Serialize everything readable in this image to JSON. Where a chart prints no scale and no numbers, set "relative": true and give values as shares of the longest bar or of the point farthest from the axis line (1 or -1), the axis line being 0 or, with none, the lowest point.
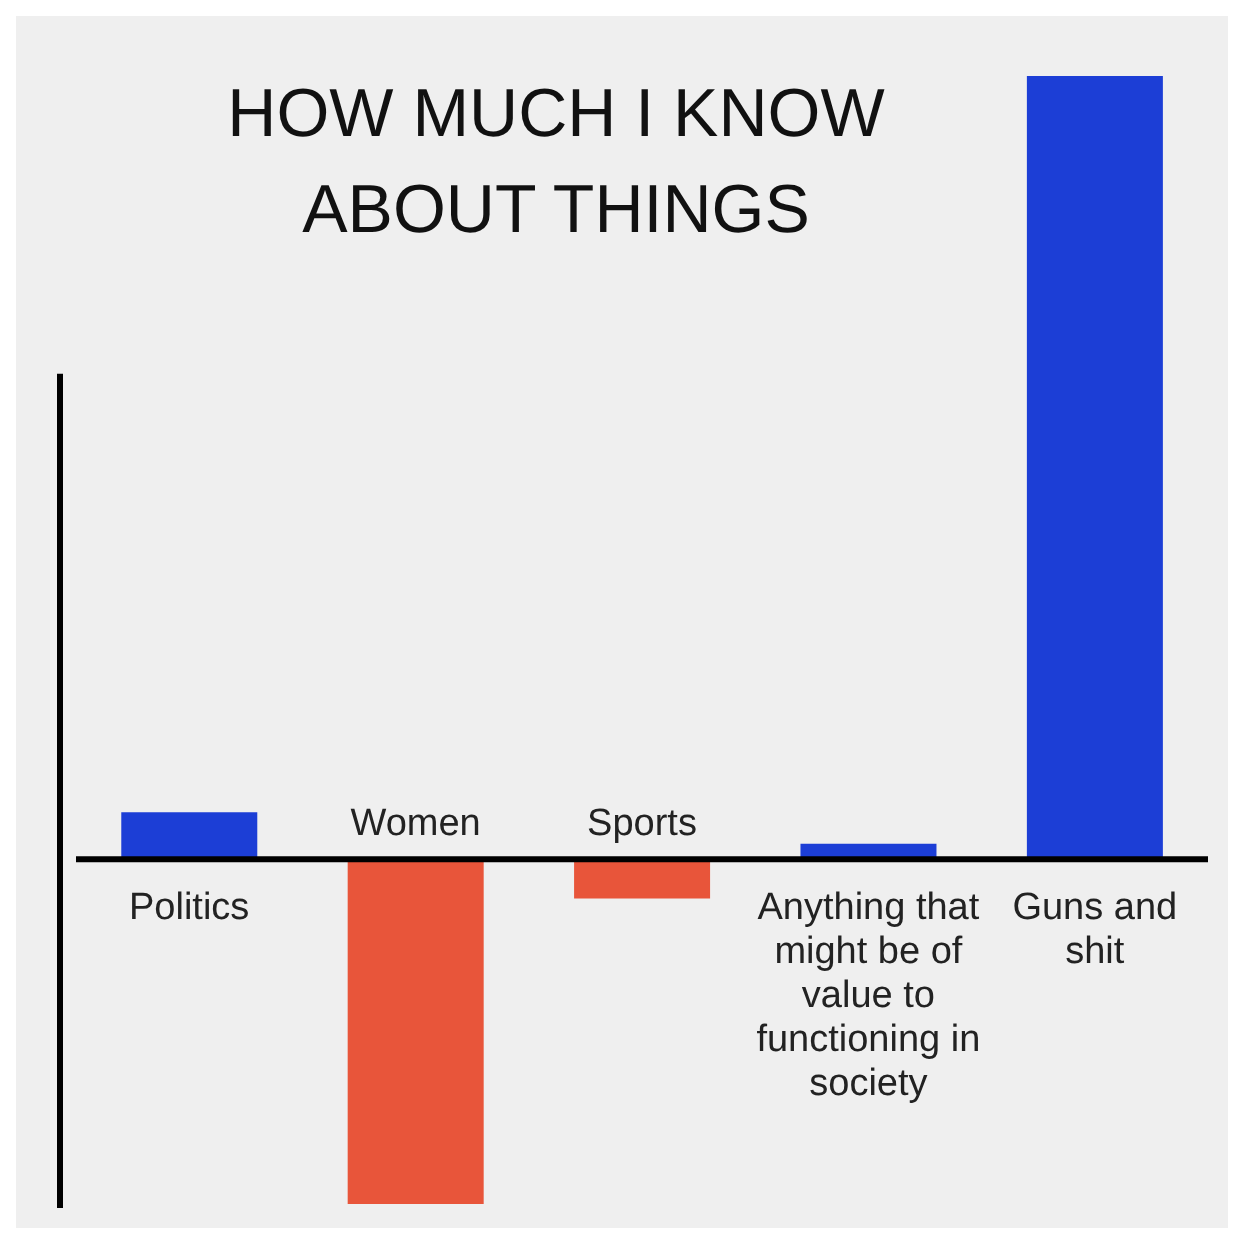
{
  "chart_data": {
    "type": "bar",
    "title": "HOW MUCH I KNOW ABOUT THINGS",
    "relative": true,
    "categories": [
      "Politics",
      "Women",
      "Sports",
      "Anything that might be of value to functioning in society",
      "Guns and shit"
    ],
    "values": [
      0.06,
      -0.44,
      -0.05,
      0.02,
      1
    ],
    "colors": [
      "#1c3ed6",
      "#e8553a",
      "#e8553a",
      "#1c3ed6",
      "#1c3ed6"
    ]
  }
}
